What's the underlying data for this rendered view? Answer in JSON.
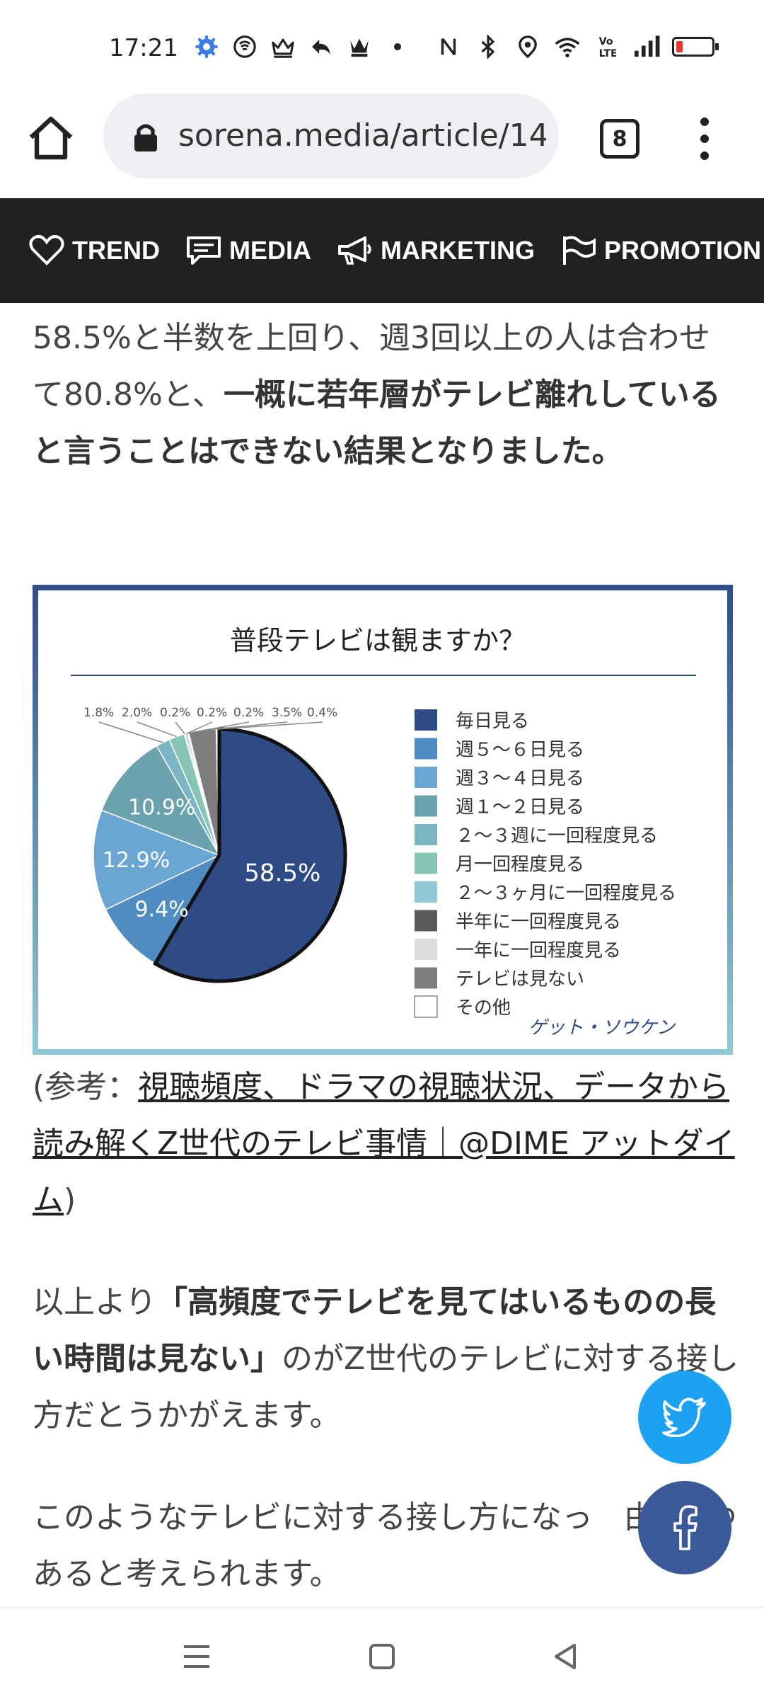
{
  "status_bar": {
    "time": "17:21",
    "left_icons": [
      "gear-icon",
      "nfc-circle-icon",
      "crown-icon",
      "reply-icon",
      "chess-queen-icon",
      "dot-icon"
    ],
    "right_icons": [
      "nfc-icon",
      "bluetooth-icon",
      "location-icon",
      "wifi-icon",
      "volte-icon",
      "signal-icon"
    ],
    "battery_level": 0.18,
    "battery_color": "#e53935"
  },
  "browser": {
    "url": "sorena.media/article/14",
    "tab_count": "8"
  },
  "site_nav": {
    "items": [
      {
        "label": "TREND",
        "icon": "heart-icon"
      },
      {
        "label": "MEDIA",
        "icon": "chat-icon"
      },
      {
        "label": "MARKETING",
        "icon": "megaphone-icon"
      },
      {
        "label": "PROMOTION",
        "icon": "flag-icon"
      }
    ]
  },
  "article": {
    "para1_normal": "58.5%と半数を上回り、週3回以上の人は合わせて80.8%と、",
    "para1_bold": "一概に若年層がテレビ離れしていると言うことはできない結果となりました。",
    "ref_prefix": "(参考：",
    "ref_link": "視聴頻度、ドラマの視聴状況、データから読み解くZ世代のテレビ事情｜@DIME アットダイム",
    "ref_suffix": ")",
    "para2_prefix": "以上より",
    "para2_bold": "「高頻度でテレビを見てはいるものの長い時間は見ない」",
    "para2_suffix": "のがZ世代のテレビに対する接し方だとうかがえます。",
    "para3": "このようなテレビに対する接し方になっ　由は2つあると考えられます。"
  },
  "chart_data": {
    "type": "pie",
    "title": "普段テレビは観ますか？",
    "watermark": "ゲット・ソウケン",
    "legend_position": "right",
    "slices": [
      {
        "label": "毎日見る",
        "value": 58.5,
        "color": "#2e4b86"
      },
      {
        "label": "週５～６日見る",
        "value": 9.4,
        "color": "#4f8cc2"
      },
      {
        "label": "週３～４日見る",
        "value": 12.9,
        "color": "#6aa6d1"
      },
      {
        "label": "週１～２日見る",
        "value": 10.9,
        "color": "#6aa3ad"
      },
      {
        "label": "２～３週に一回程度見る",
        "value": 1.8,
        "color": "#7ab6c4"
      },
      {
        "label": "月一回程度見る",
        "value": 2.0,
        "color": "#86c5b6"
      },
      {
        "label": "２～３ヶ月に一回程度見る",
        "value": 0.2,
        "color": "#92c7d4"
      },
      {
        "label": "半年に一回程度見る",
        "value": 0.2,
        "color": "#5a5a5a"
      },
      {
        "label": "一年に一回程度見る",
        "value": 0.2,
        "color": "#dcdcdc"
      },
      {
        "label": "テレビは見ない",
        "value": 3.5,
        "color": "#7d7d7d"
      },
      {
        "label": "その他",
        "value": 0.4,
        "color": "#ffffff"
      }
    ],
    "inner_labels": [
      "58.5%",
      "9.4%",
      "12.9%",
      "10.9%"
    ],
    "outer_labels": [
      "1.8%",
      "2.0%",
      "0.2%",
      "0.2%",
      "0.2%",
      "3.5%",
      "0.4%"
    ]
  }
}
